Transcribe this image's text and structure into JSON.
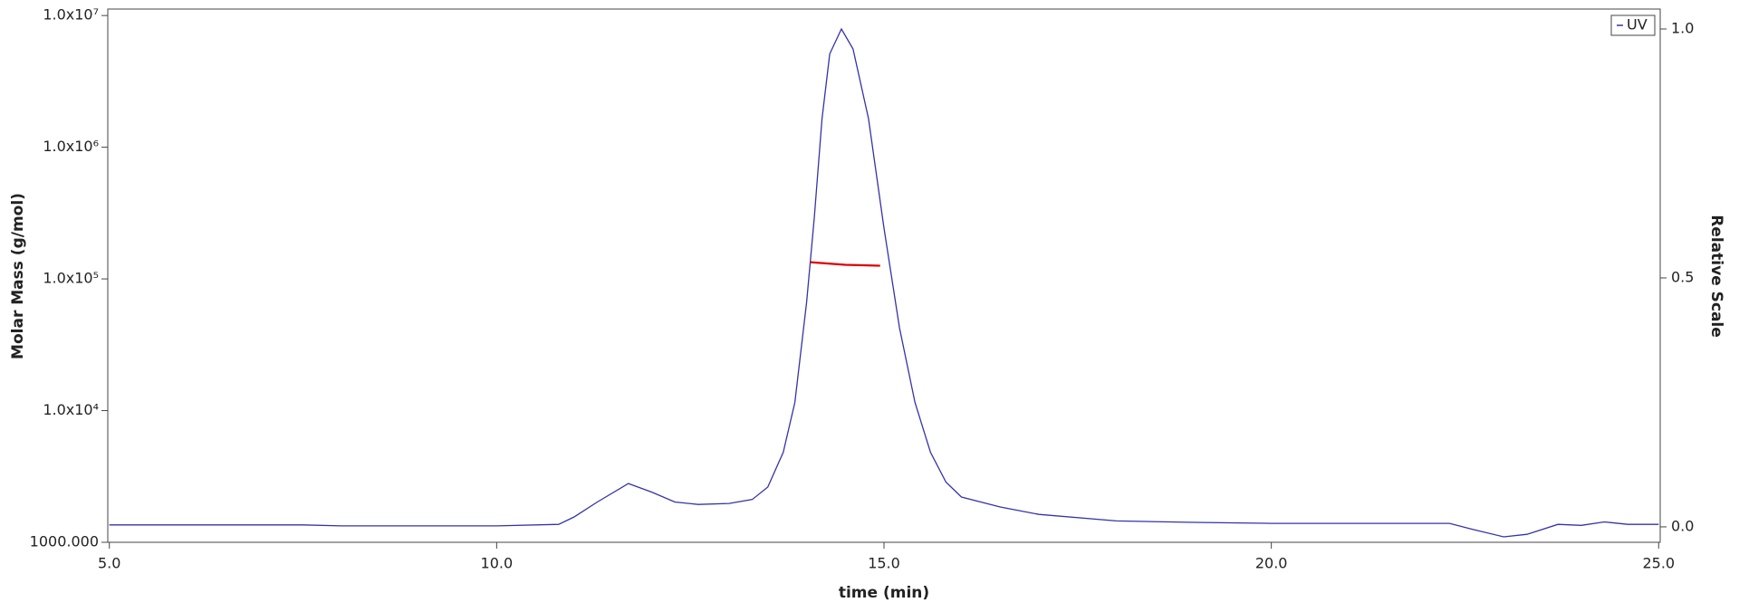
{
  "chart_data": {
    "type": "line",
    "x_label": "time (min)",
    "y_label": "Molar Mass (g/mol)",
    "y2_label": "Relative Scale",
    "xlim": [
      4.98,
      25.02
    ],
    "xticks": [
      {
        "value": 5,
        "label": "5.0"
      },
      {
        "value": 10,
        "label": "10.0"
      },
      {
        "value": 15,
        "label": "15.0"
      },
      {
        "value": 20,
        "label": "20.0"
      },
      {
        "value": 25,
        "label": "25.0"
      }
    ],
    "ylim": [
      1000,
      11200000
    ],
    "log_y": true,
    "yticks": [
      {
        "value": 1000,
        "label": "1000.000"
      },
      {
        "value": 10000,
        "label": "1.0x10⁴"
      },
      {
        "value": 100000,
        "label": "1.0x10⁵"
      },
      {
        "value": 1000000,
        "label": "1.0x10⁶"
      },
      {
        "value": 10000000,
        "label": "1.0x10⁷"
      }
    ],
    "y2lim": [
      -0.031,
      1.04
    ],
    "y2ticks": [
      {
        "value": 0,
        "label": "0.0"
      },
      {
        "value": 0.5,
        "label": "0.5"
      },
      {
        "value": 1,
        "label": "1.0"
      }
    ],
    "legend": "upper right",
    "series": [
      {
        "name": "UV",
        "color": "#3333aa",
        "axis": "y2",
        "x": [
          5,
          7.5,
          8,
          10,
          10.8,
          11,
          11.3,
          11.7,
          12,
          12.3,
          12.6,
          13,
          13.3,
          13.5,
          13.7,
          13.85,
          14,
          14.1,
          14.2,
          14.3,
          14.45,
          14.6,
          14.8,
          15,
          15.2,
          15.4,
          15.6,
          15.8,
          16,
          16.5,
          17,
          18,
          19,
          20,
          22.3,
          22.6,
          23,
          23.3,
          23.7,
          24,
          24.3,
          24.6,
          25
        ],
        "values": [
          0.004,
          0.004,
          0.002,
          0.002,
          0.005,
          0.02,
          0.05,
          0.087,
          0.07,
          0.05,
          0.045,
          0.047,
          0.055,
          0.08,
          0.15,
          0.25,
          0.45,
          0.62,
          0.82,
          0.95,
          1.0,
          0.96,
          0.82,
          0.6,
          0.4,
          0.25,
          0.15,
          0.09,
          0.06,
          0.04,
          0.025,
          0.012,
          0.009,
          0.007,
          0.007,
          -0.005,
          -0.02,
          -0.015,
          0.005,
          0.003,
          0.01,
          0.005,
          0.005
        ]
      },
      {
        "color": "#dd0000",
        "x": [
          14.05,
          14.5,
          14.95
        ],
        "values": [
          134000,
          128000,
          126000
        ]
      }
    ]
  }
}
